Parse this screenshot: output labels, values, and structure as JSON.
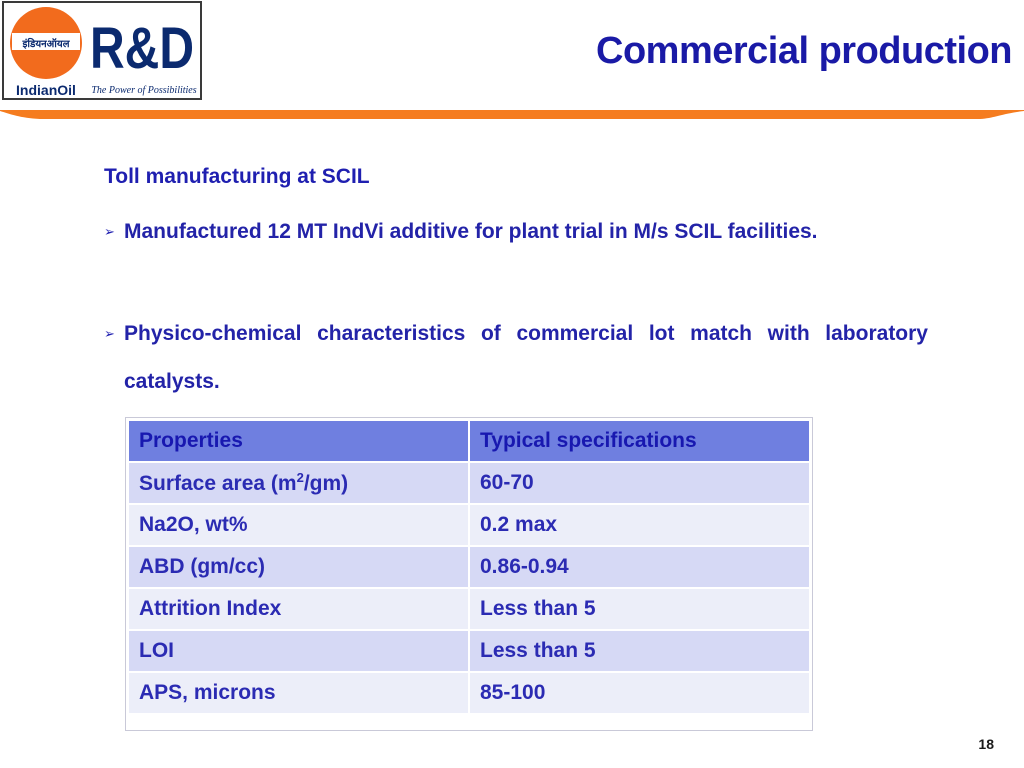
{
  "logo": {
    "hindi_text": "इंडियनऑयल",
    "brand": "IndianOil",
    "rd_text": "R&D",
    "tagline": "The Power of Possibilities",
    "colors": {
      "orange": "#f26b1d",
      "navy": "#0b2a6f"
    }
  },
  "title": "Commercial production",
  "subheading": "Toll manufacturing at SCIL",
  "bullets": [
    {
      "text": "Manufactured 12 MT IndVi additive for plant trial in M/s SCIL facilities."
    },
    {
      "text": "Physico-chemical characteristics of commercial lot match with laboratory catalysts."
    }
  ],
  "table": {
    "headers": [
      "Properties",
      "Typical specifications"
    ],
    "rows": [
      {
        "property_prefix": "Surface area (m",
        "property_sup": "2",
        "property_suffix": "/gm)",
        "spec": "60-70"
      },
      {
        "property": "Na2O, wt%",
        "spec": "0.2 max"
      },
      {
        "property": "ABD (gm/cc)",
        "spec": "0.86-0.94"
      },
      {
        "property": "Attrition Index",
        "spec": "Less than 5"
      },
      {
        "property": "LOI",
        "spec": "Less than 5"
      },
      {
        "property": "APS, microns",
        "spec": "85-100"
      }
    ]
  },
  "page_number": "18",
  "colors": {
    "title": "#1a1aa6",
    "accent_bar": "#f57c1f",
    "table_header": "#6f7fe0",
    "row_odd": "#d6d9f5",
    "row_even": "#eceef9"
  }
}
